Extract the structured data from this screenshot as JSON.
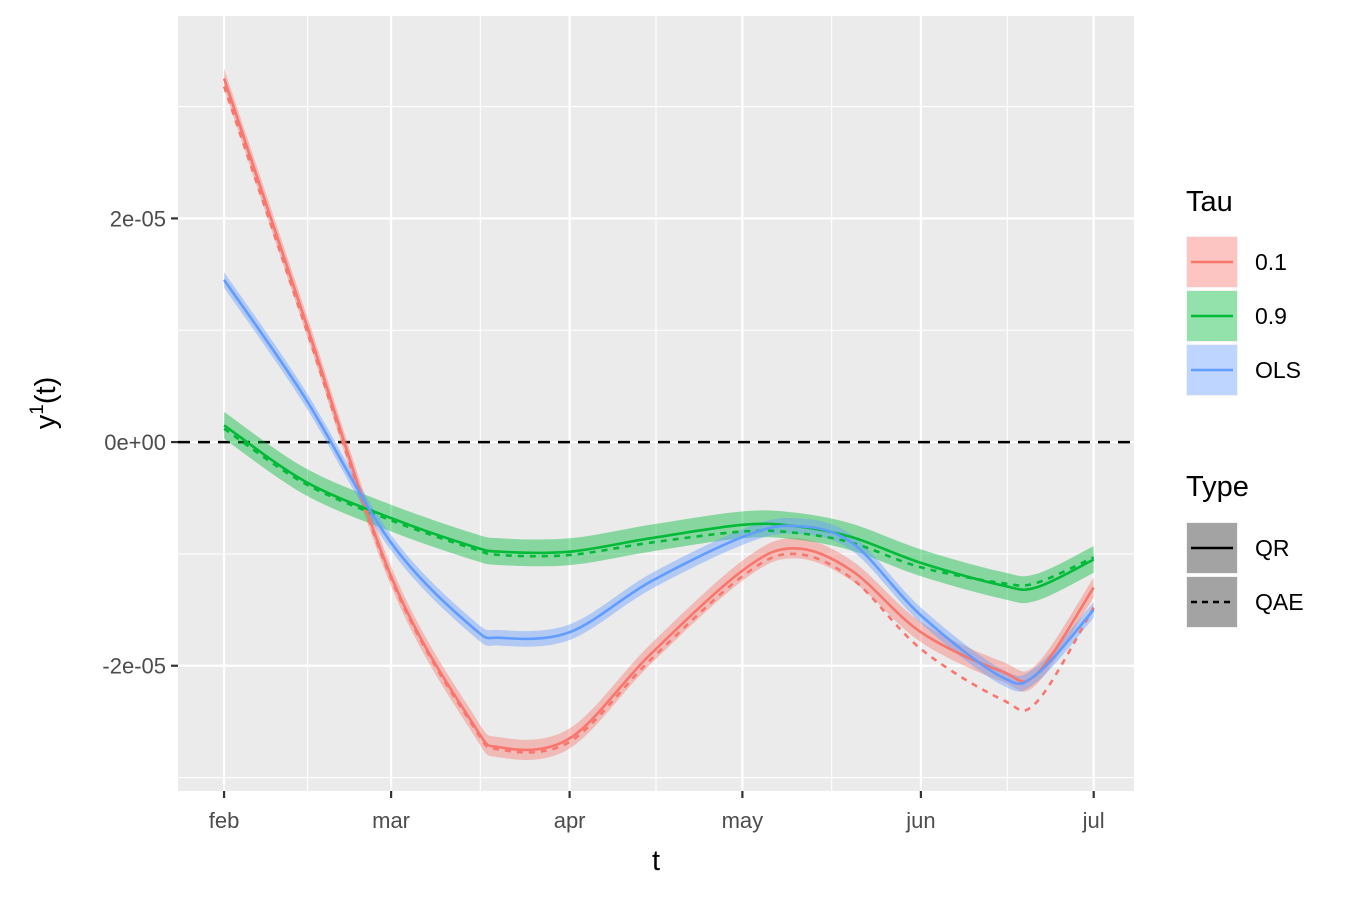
{
  "chart_data": {
    "type": "line",
    "xlabel": "t",
    "ylabel": "y",
    "ylabel_superscript": "1",
    "ylabel_suffix": "(t)",
    "x_ticks": [
      {
        "label": "feb",
        "value": "2020-02-01"
      },
      {
        "label": "mar",
        "value": "2020-03-01"
      },
      {
        "label": "apr",
        "value": "2020-04-01"
      },
      {
        "label": "may",
        "value": "2020-05-01"
      },
      {
        "label": "jun",
        "value": "2020-06-01"
      },
      {
        "label": "jul",
        "value": "2020-07-01"
      }
    ],
    "xlim": [
      "2020-01-24",
      "2020-07-08"
    ],
    "y_ticks": [
      {
        "label": "-2e-05",
        "value": -2e-05
      },
      {
        "label": "0e+00",
        "value": 0
      },
      {
        "label": "2e-05",
        "value": 2e-05
      }
    ],
    "ylim": [
      -3.12e-05,
      3.81e-05
    ],
    "reference_line": {
      "y": 0,
      "style": "dashed",
      "color": "#000000"
    },
    "grid": true,
    "panel_background": "#ebebeb",
    "legend_position": "right",
    "legend": {
      "tau_title": "Tau",
      "tau_items": [
        {
          "label": "0.1",
          "color": "#f8766d"
        },
        {
          "label": "0.9",
          "color": "#00ba38"
        },
        {
          "label": "OLS",
          "color": "#619cff"
        }
      ],
      "type_title": "Type",
      "type_items": [
        {
          "label": "QR",
          "linetype": "solid"
        },
        {
          "label": "QAE",
          "linetype": "dashed"
        }
      ]
    },
    "series": [
      {
        "name": "0.1",
        "type": "QR",
        "color": "#f8766d",
        "linetype": "solid",
        "band": 9e-07,
        "x": [
          "2020-02-01",
          "2020-02-15",
          "2020-03-01",
          "2020-03-15",
          "2020-03-20",
          "2020-04-01",
          "2020-04-15",
          "2020-05-01",
          "2020-05-10",
          "2020-05-20",
          "2020-06-01",
          "2020-06-15",
          "2020-06-21",
          "2020-07-01"
        ],
        "y": [
          3.25e-05,
          1.1e-05,
          -1.2e-05,
          -2.5e-05,
          -2.73e-05,
          -2.65e-05,
          -1.9e-05,
          -1.15e-05,
          -9.5e-06,
          -1.15e-05,
          -1.7e-05,
          -2.05e-05,
          -2.08e-05,
          -1.3e-05
        ]
      },
      {
        "name": "0.1",
        "type": "QAE",
        "color": "#f8766d",
        "linetype": "dashed",
        "band": 0,
        "x": [
          "2020-02-01",
          "2020-02-15",
          "2020-03-01",
          "2020-03-15",
          "2020-03-20",
          "2020-04-01",
          "2020-04-15",
          "2020-05-01",
          "2020-05-10",
          "2020-05-20",
          "2020-06-01",
          "2020-06-15",
          "2020-06-21",
          "2020-07-01"
        ],
        "y": [
          3.18e-05,
          1.05e-05,
          -1.22e-05,
          -2.52e-05,
          -2.75e-05,
          -2.68e-05,
          -1.95e-05,
          -1.2e-05,
          -1e-05,
          -1.22e-05,
          -1.85e-05,
          -2.3e-05,
          -2.33e-05,
          -1.48e-05
        ]
      },
      {
        "name": "0.9",
        "type": "QR",
        "color": "#00ba38",
        "linetype": "solid",
        "band": 1.2e-06,
        "x": [
          "2020-02-01",
          "2020-02-15",
          "2020-03-01",
          "2020-03-15",
          "2020-03-20",
          "2020-04-01",
          "2020-04-15",
          "2020-05-01",
          "2020-05-10",
          "2020-05-20",
          "2020-06-01",
          "2020-06-15",
          "2020-06-21",
          "2020-07-01"
        ],
        "y": [
          1.5e-06,
          -3.5e-06,
          -6.8e-06,
          -9.3e-06,
          -9.8e-06,
          -9.8e-06,
          -8.6e-06,
          -7.4e-06,
          -7.5e-06,
          -8.5e-06,
          -1.08e-05,
          -1.28e-05,
          -1.3e-05,
          -1.05e-05
        ]
      },
      {
        "name": "0.9",
        "type": "QAE",
        "color": "#00ba38",
        "linetype": "dashed",
        "band": 0,
        "x": [
          "2020-02-01",
          "2020-02-15",
          "2020-03-01",
          "2020-03-15",
          "2020-03-20",
          "2020-04-01",
          "2020-04-15",
          "2020-05-01",
          "2020-05-10",
          "2020-05-20",
          "2020-06-01",
          "2020-06-15",
          "2020-06-21",
          "2020-07-01"
        ],
        "y": [
          1.2e-06,
          -3.7e-06,
          -7e-06,
          -9.5e-06,
          -1.01e-05,
          -1.01e-05,
          -9e-06,
          -8e-06,
          -8.1e-06,
          -9e-06,
          -1.12e-05,
          -1.26e-05,
          -1.26e-05,
          -1.03e-05
        ]
      },
      {
        "name": "OLS",
        "type": "QR",
        "color": "#619cff",
        "linetype": "solid",
        "band": 7e-07,
        "x": [
          "2020-02-01",
          "2020-02-15",
          "2020-03-01",
          "2020-03-15",
          "2020-03-20",
          "2020-04-01",
          "2020-04-15",
          "2020-05-01",
          "2020-05-10",
          "2020-05-20",
          "2020-06-01",
          "2020-06-15",
          "2020-06-21",
          "2020-07-01"
        ],
        "y": [
          1.45e-05,
          4e-06,
          -9e-06,
          -1.65e-05,
          -1.75e-05,
          -1.7e-05,
          -1.25e-05,
          -8.5e-06,
          -7.5e-06,
          -9e-06,
          -1.55e-05,
          -2.1e-05,
          -2.08e-05,
          -1.5e-05
        ]
      }
    ]
  }
}
